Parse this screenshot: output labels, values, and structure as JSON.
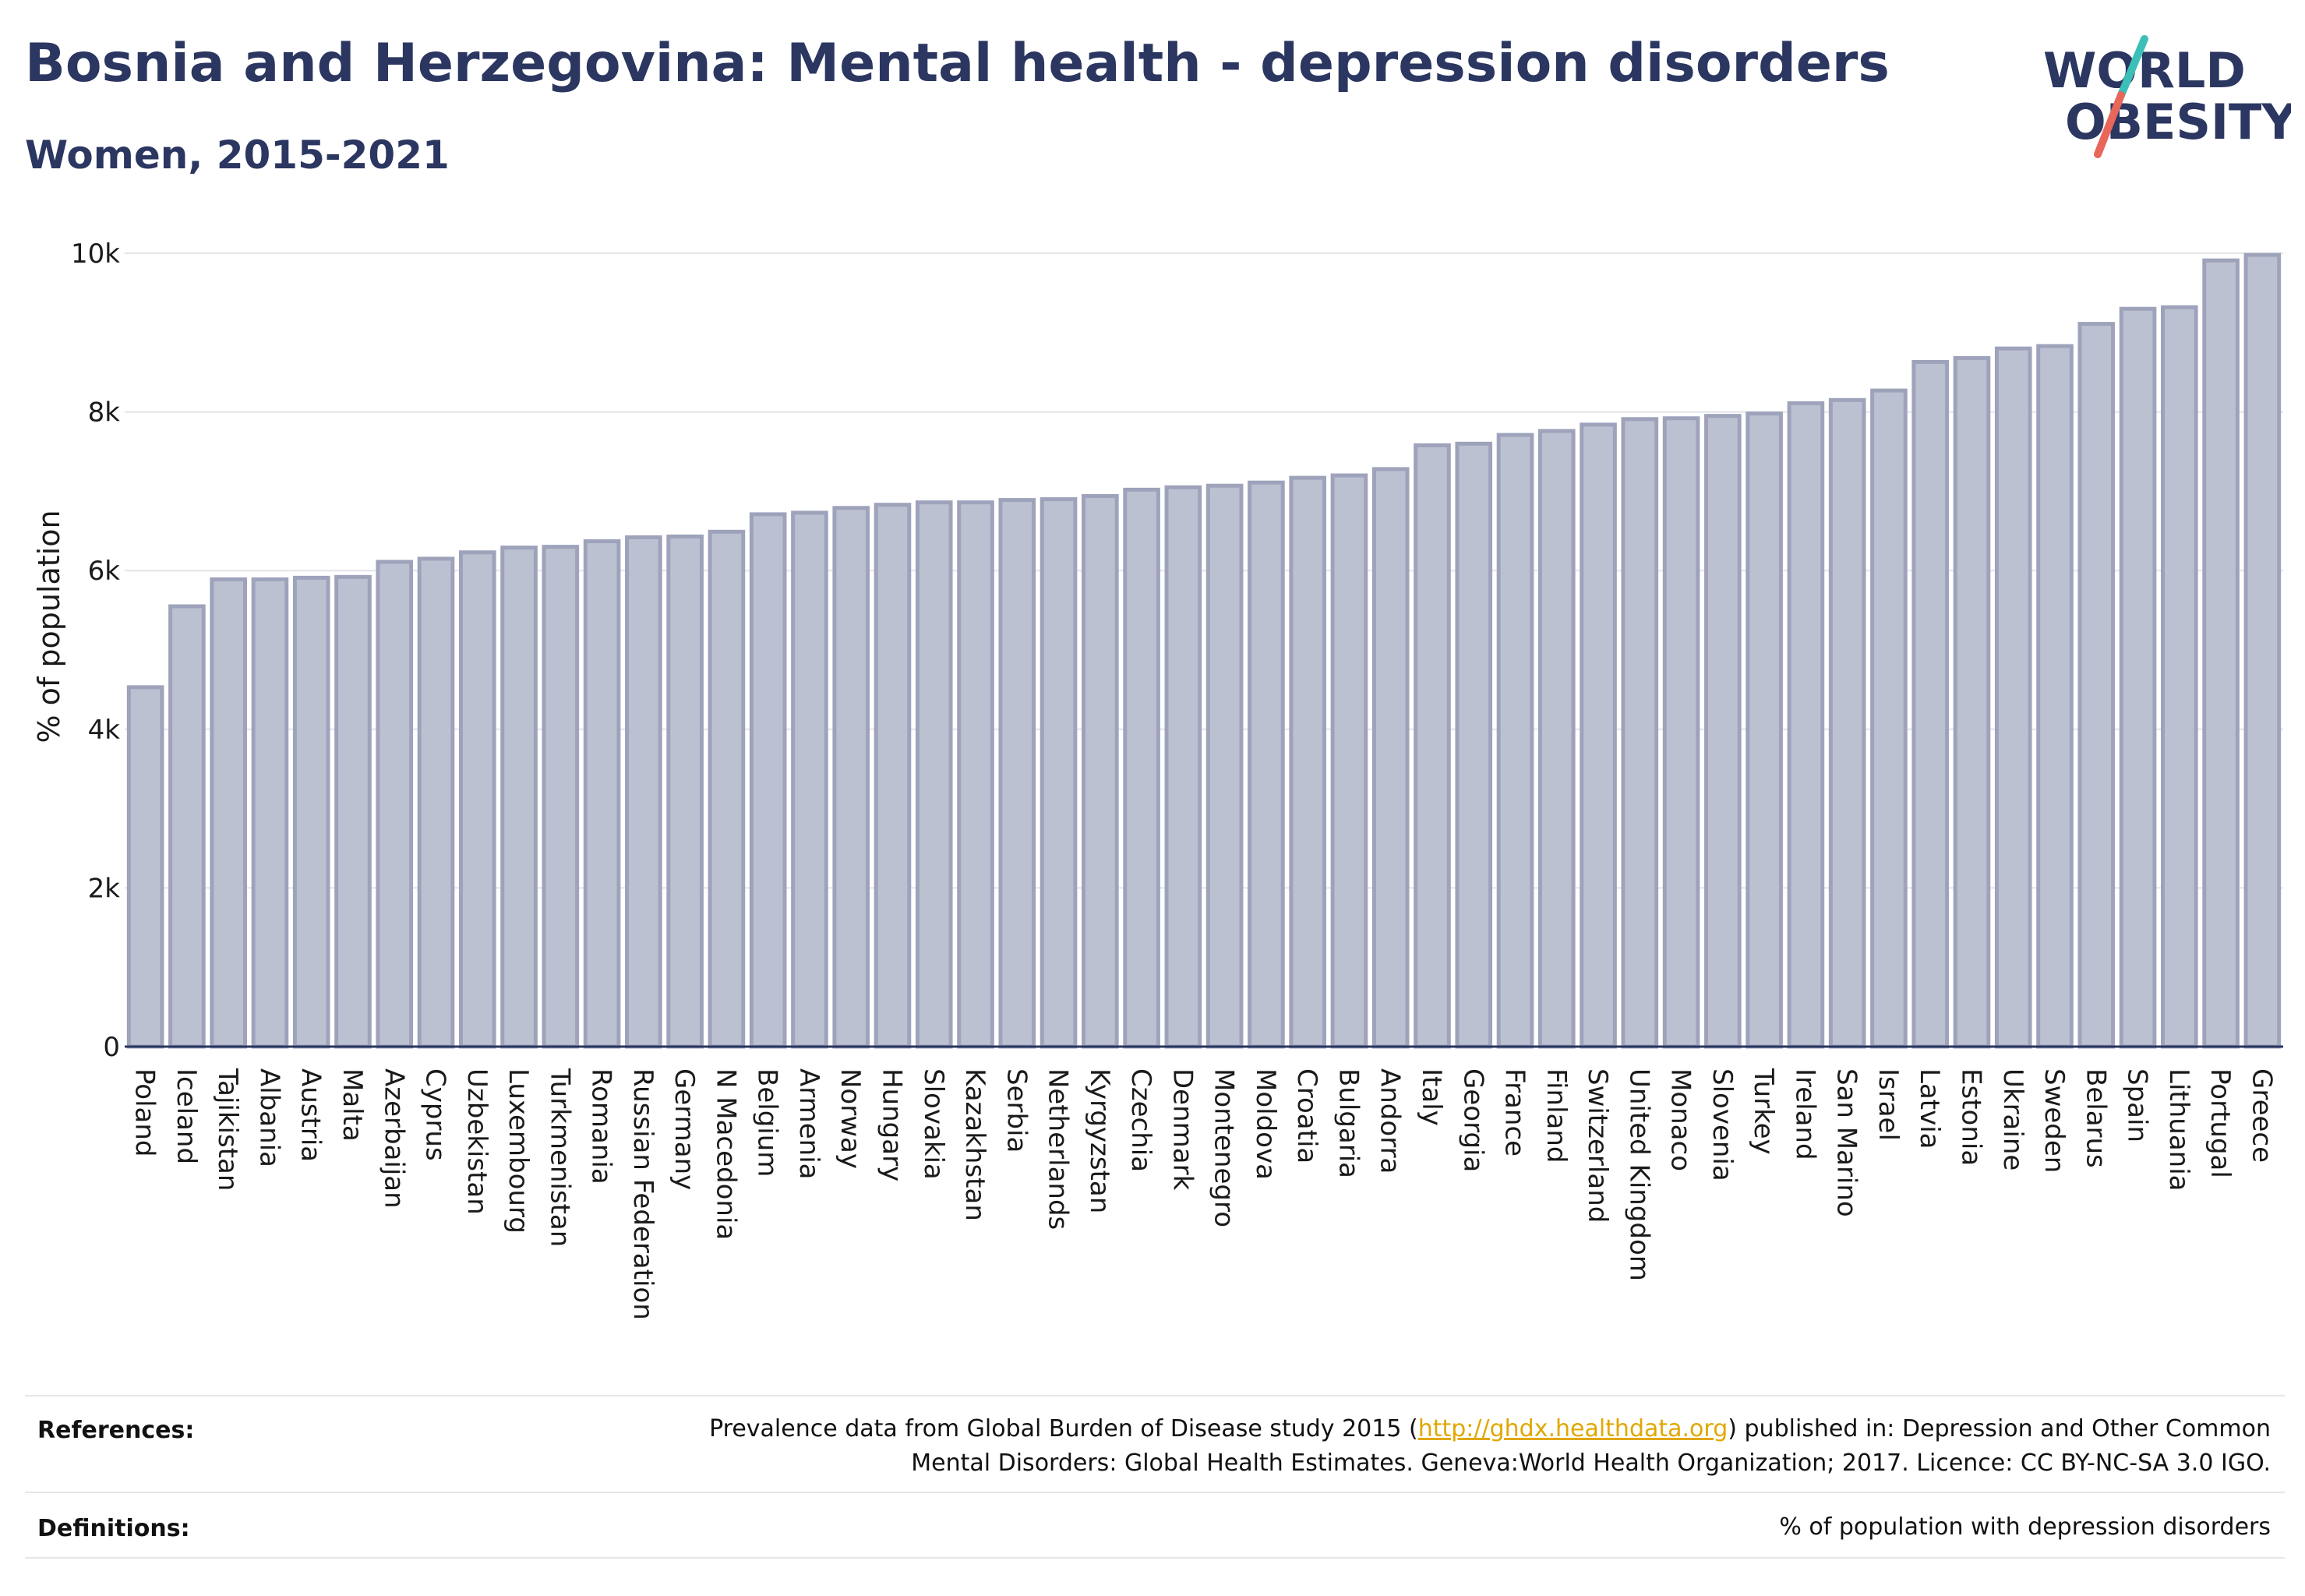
{
  "header": {
    "title": "Bosnia and Herzegovina: Mental health - depression disorders",
    "subtitle": "Women, 2015-2021"
  },
  "logo": {
    "line1": "WORLD",
    "line2": "OBESITY",
    "text_color": "#2b3661",
    "stroke_teal": "#3bbfb7",
    "stroke_red": "#e8665a"
  },
  "chart_data": {
    "type": "bar",
    "ylabel": "% of population",
    "ylim": [
      0,
      10000
    ],
    "yticks": [
      0,
      2000,
      4000,
      6000,
      8000,
      10000
    ],
    "ytick_labels": [
      "0",
      "2k",
      "4k",
      "6k",
      "8k",
      "10k"
    ],
    "grid": true,
    "bar_fill": "#bcc1d1",
    "bar_stroke": "#9ea3bb",
    "categories": [
      "Poland",
      "Iceland",
      "Tajikistan",
      "Albania",
      "Austria",
      "Malta",
      "Azerbaijan",
      "Cyprus",
      "Uzbekistan",
      "Luxembourg",
      "Turkmenistan",
      "Romania",
      "Russian Federation",
      "Germany",
      "N Macedonia",
      "Belgium",
      "Armenia",
      "Norway",
      "Hungary",
      "Slovakia",
      "Kazakhstan",
      "Serbia",
      "Netherlands",
      "Kyrgyzstan",
      "Czechia",
      "Denmark",
      "Montenegro",
      "Moldova",
      "Croatia",
      "Bulgaria",
      "Andorra",
      "Italy",
      "Georgia",
      "France",
      "Finland",
      "Switzerland",
      "United Kingdom",
      "Monaco",
      "Slovenia",
      "Turkey",
      "Ireland",
      "San Marino",
      "Israel",
      "Latvia",
      "Estonia",
      "Ukraine",
      "Sweden",
      "Belarus",
      "Spain",
      "Lithuania",
      "Portugal",
      "Greece"
    ],
    "values": [
      4530,
      5550,
      5890,
      5890,
      5910,
      5920,
      6110,
      6150,
      6230,
      6290,
      6300,
      6370,
      6420,
      6430,
      6490,
      6710,
      6730,
      6790,
      6830,
      6860,
      6860,
      6890,
      6900,
      6940,
      7020,
      7050,
      7070,
      7110,
      7170,
      7200,
      7280,
      7580,
      7600,
      7710,
      7760,
      7840,
      7910,
      7920,
      7950,
      7980,
      8110,
      8150,
      8270,
      8630,
      8680,
      8800,
      8830,
      9110,
      9300,
      9320,
      9910,
      9980
    ]
  },
  "footer": {
    "references_label": "References:",
    "references_text_before": "Prevalence data from Global Burden of Disease study 2015 (",
    "references_link": "http://ghdx.healthdata.org",
    "references_text_after": ") published in: Depression and Other Common",
    "references_text_line2": "Mental Disorders: Global Health Estimates. Geneva:World Health Organization; 2017. Licence: CC BY-NC-SA 3.0 IGO.",
    "definitions_label": "Definitions:",
    "definitions_text": "% of population with depression disorders"
  }
}
